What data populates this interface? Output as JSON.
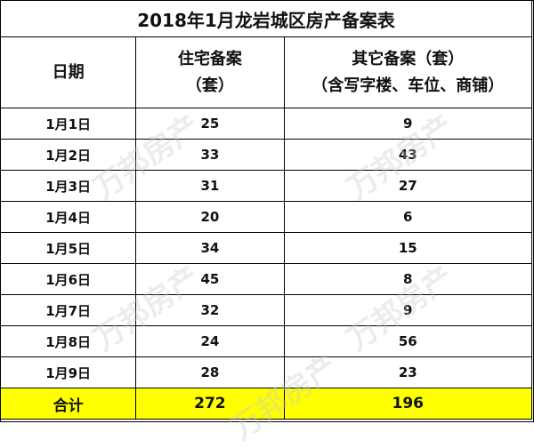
{
  "title": "2018年1月龙岩城区房产备案表",
  "headers": {
    "date": "日期",
    "residential_line1": "住宅备案",
    "residential_line2": "（套）",
    "other_line1": "其它备案（套）",
    "other_line2": "（含写字楼、车位、商铺）"
  },
  "rows": [
    {
      "date": "1月1日",
      "residential": "25",
      "other": "9"
    },
    {
      "date": "1月2日",
      "residential": "33",
      "other": "43"
    },
    {
      "date": "1月3日",
      "residential": "31",
      "other": "27"
    },
    {
      "date": "1月4日",
      "residential": "20",
      "other": "6"
    },
    {
      "date": "1月5日",
      "residential": "34",
      "other": "15"
    },
    {
      "date": "1月6日",
      "residential": "45",
      "other": "8"
    },
    {
      "date": "1月7日",
      "residential": "32",
      "other": "9"
    },
    {
      "date": "1月8日",
      "residential": "24",
      "other": "56"
    },
    {
      "date": "1月9日",
      "residential": "28",
      "other": "23"
    }
  ],
  "total": {
    "label": "合计",
    "residential": "272",
    "other": "196"
  },
  "watermark_text": "万邦房产",
  "colors": {
    "total_row_background": "#ffff00",
    "border": "#000000"
  }
}
